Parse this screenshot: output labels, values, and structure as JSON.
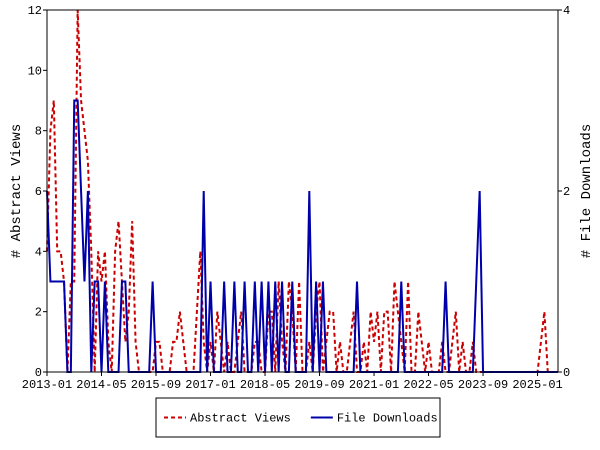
{
  "chart_data": {
    "type": "line",
    "y_label": "# Abstract Views",
    "y2_label": "# File Downloads",
    "x": [
      "2013-01",
      "2013-02",
      "2013-03",
      "2013-04",
      "2013-05",
      "2013-06",
      "2013-07",
      "2013-08",
      "2013-09",
      "2013-10",
      "2013-11",
      "2013-12",
      "2014-01",
      "2014-02",
      "2014-03",
      "2014-04",
      "2014-05",
      "2014-06",
      "2014-07",
      "2014-08",
      "2014-09",
      "2014-10",
      "2014-11",
      "2014-12",
      "2015-01",
      "2015-02",
      "2015-03",
      "2015-04",
      "2015-05",
      "2015-06",
      "2015-07",
      "2015-08",
      "2015-09",
      "2015-10",
      "2015-11",
      "2015-12",
      "2016-01",
      "2016-02",
      "2016-03",
      "2016-04",
      "2016-05",
      "2016-06",
      "2016-07",
      "2016-08",
      "2016-09",
      "2016-10",
      "2016-11",
      "2016-12",
      "2017-01",
      "2017-02",
      "2017-03",
      "2017-04",
      "2017-05",
      "2017-06",
      "2017-07",
      "2017-08",
      "2017-09",
      "2017-10",
      "2017-11",
      "2017-12",
      "2018-01",
      "2018-02",
      "2018-03",
      "2018-04",
      "2018-05",
      "2018-06",
      "2018-07",
      "2018-08",
      "2018-09",
      "2018-10",
      "2018-11",
      "2018-12",
      "2019-01",
      "2019-02",
      "2019-03",
      "2019-04",
      "2019-05",
      "2019-06",
      "2019-07",
      "2019-08",
      "2019-09",
      "2019-10",
      "2019-11",
      "2019-12",
      "2020-01",
      "2020-02",
      "2020-03",
      "2020-04",
      "2020-05",
      "2020-06",
      "2020-07",
      "2020-08",
      "2020-09",
      "2020-10",
      "2020-11",
      "2020-12",
      "2021-01",
      "2021-02",
      "2021-03",
      "2021-04",
      "2021-05",
      "2021-06",
      "2021-07",
      "2021-08",
      "2021-09",
      "2021-10",
      "2021-11",
      "2021-12",
      "2022-01",
      "2022-02",
      "2022-03",
      "2022-04",
      "2022-05",
      "2022-06",
      "2022-07",
      "2022-08",
      "2022-09",
      "2022-10",
      "2022-11",
      "2022-12",
      "2023-01",
      "2023-02",
      "2023-03",
      "2023-04",
      "2023-05",
      "2023-06",
      "2023-07",
      "2023-08",
      "2023-09",
      "2023-10",
      "2023-11",
      "2023-12",
      "2024-01",
      "2024-02",
      "2024-03",
      "2024-04",
      "2024-05",
      "2024-06",
      "2024-07",
      "2024-08",
      "2024-09",
      "2024-10",
      "2024-11",
      "2024-12",
      "2025-01",
      "2025-02",
      "2025-03",
      "2025-04",
      "2025-05",
      "2025-06",
      "2025-07"
    ],
    "xticks": [
      "2013-01",
      "2014-05",
      "2015-09",
      "2017-01",
      "2018-05",
      "2019-09",
      "2021-01",
      "2022-05",
      "2023-09",
      "2025-01"
    ],
    "ylim": [
      0,
      12
    ],
    "yticks": [
      0,
      2,
      4,
      6,
      8,
      10,
      12
    ],
    "y2lim": [
      0,
      4
    ],
    "y2ticks": [
      0,
      2,
      4
    ],
    "legend": "bottom",
    "series": [
      {
        "name": "Abstract Views",
        "color": "#cc0000",
        "dash": true,
        "values": [
          4,
          8,
          9,
          4,
          4,
          3,
          0,
          3,
          3,
          12,
          9,
          8,
          7,
          4,
          0,
          4,
          3,
          4,
          1,
          0,
          4,
          5,
          3,
          1,
          2,
          5,
          1,
          0,
          0,
          0,
          0,
          0,
          1,
          1,
          0,
          0,
          0,
          1,
          1,
          2,
          1,
          0,
          0,
          0,
          2,
          4,
          1,
          0,
          1,
          0,
          2,
          1,
          0,
          1,
          0,
          0,
          1,
          2,
          0,
          0,
          0,
          1,
          1,
          0,
          0,
          2,
          2,
          0,
          3,
          1,
          0,
          3,
          2,
          0,
          3,
          0,
          0,
          1,
          0,
          2,
          3,
          0,
          1,
          2,
          2,
          0,
          1,
          0,
          0,
          1,
          2,
          0,
          0,
          1,
          0,
          2,
          1,
          2,
          0,
          2,
          2,
          0,
          3,
          2,
          1,
          0,
          3,
          0,
          0,
          2,
          1,
          0,
          1,
          0,
          0,
          0,
          1,
          0,
          0,
          1,
          2,
          0,
          1,
          0,
          0,
          1,
          0,
          0,
          0,
          0,
          0,
          0,
          0,
          0,
          0,
          0,
          0,
          0,
          0,
          0,
          0,
          0,
          0,
          0,
          0,
          1,
          2,
          0,
          0,
          0,
          0
        ]
      },
      {
        "name": "File Downloads",
        "color": "#0000aa",
        "dash": false,
        "axis": "y2",
        "values": [
          2,
          1,
          1,
          1,
          1,
          1,
          0,
          0,
          3,
          3,
          2,
          1,
          2,
          0,
          1,
          1,
          0,
          1,
          0,
          0,
          0,
          0,
          1,
          1,
          0,
          0,
          0,
          0,
          0,
          0,
          0,
          1,
          0,
          0,
          0,
          0,
          0,
          0,
          0,
          0,
          0,
          0,
          0,
          0,
          0,
          0,
          2,
          0,
          1,
          0,
          0,
          0,
          1,
          0,
          0,
          1,
          0,
          0,
          1,
          0,
          0,
          1,
          0,
          1,
          0,
          1,
          0,
          1,
          0,
          1,
          0,
          0,
          1,
          0,
          0,
          0,
          0,
          2,
          0,
          1,
          0,
          1,
          0,
          0,
          0,
          0,
          0,
          0,
          0,
          0,
          0,
          1,
          0,
          0,
          0,
          0,
          0,
          0,
          0,
          0,
          0,
          0,
          0,
          0,
          1,
          0,
          0,
          0,
          0,
          0,
          0,
          0,
          0,
          0,
          0,
          0,
          0,
          1,
          0,
          0,
          0,
          0,
          0,
          0,
          0,
          0,
          1,
          2,
          0,
          0,
          0,
          0,
          0,
          0,
          0,
          0,
          0,
          0,
          0,
          0,
          0,
          0,
          0,
          0,
          0,
          0,
          0,
          0,
          0,
          0,
          0
        ]
      }
    ]
  }
}
